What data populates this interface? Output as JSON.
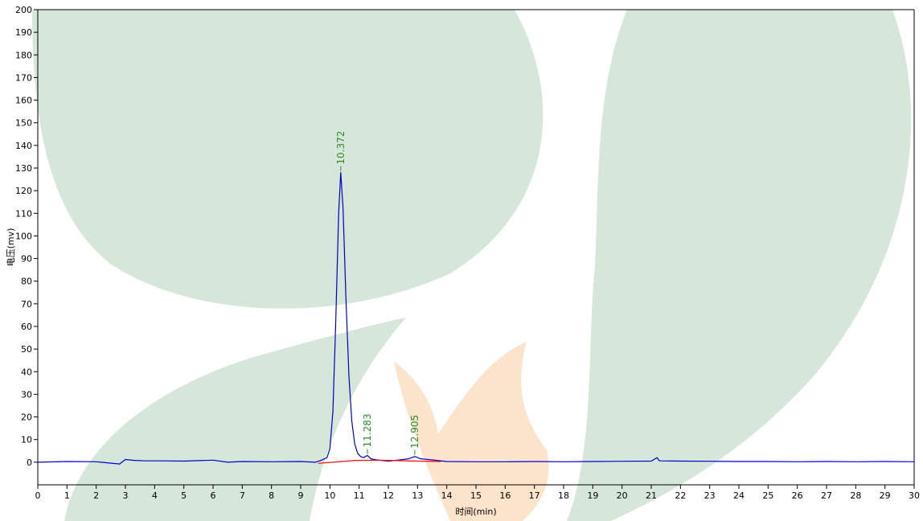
{
  "chart_data": {
    "type": "line",
    "title": "",
    "xlabel": "时间(min)",
    "ylabel": "电压(mv)",
    "xlim": [
      0,
      30
    ],
    "ylim": [
      -10,
      200
    ],
    "x_ticks": [
      0,
      1,
      2,
      3,
      4,
      5,
      6,
      7,
      8,
      9,
      10,
      11,
      12,
      13,
      14,
      15,
      16,
      17,
      18,
      19,
      20,
      21,
      22,
      23,
      24,
      25,
      26,
      27,
      28,
      29,
      30
    ],
    "y_ticks": [
      0,
      10,
      20,
      30,
      40,
      50,
      60,
      70,
      80,
      90,
      100,
      110,
      120,
      130,
      140,
      150,
      160,
      170,
      180,
      190,
      200
    ],
    "grid": false,
    "colors": {
      "signal": "#0000cc",
      "baseline": "#ff0000",
      "peak_marker": "#2e8b2e",
      "watermark_green": "#d6e6d9",
      "watermark_orange": "#fbe3cc"
    },
    "series": [
      {
        "role": "signal",
        "x": [
          0,
          1,
          2,
          2.8,
          3.0,
          3.3,
          3.7,
          4.3,
          5,
          6,
          6.5,
          7,
          8,
          9,
          9.5,
          9.7,
          9.9,
          10.0,
          10.1,
          10.2,
          10.3,
          10.372,
          10.45,
          10.55,
          10.65,
          10.75,
          10.85,
          10.95,
          11.05,
          11.15,
          11.283,
          11.4,
          11.6,
          12.0,
          12.4,
          12.7,
          12.905,
          13.1,
          13.5,
          14,
          15,
          16,
          17,
          18,
          19,
          20,
          21,
          21.2,
          21.25,
          21.3,
          22,
          23,
          24,
          25,
          26,
          27,
          28,
          29,
          30
        ],
        "y": [
          0,
          0.3,
          0.2,
          -0.8,
          1.2,
          0.8,
          0.6,
          0.6,
          0.5,
          0.9,
          0,
          0.3,
          0.2,
          0.3,
          0,
          0.8,
          2,
          6,
          22,
          62,
          110,
          128,
          112,
          72,
          38,
          18,
          8,
          4,
          2.5,
          2,
          3,
          1.5,
          1,
          0.5,
          1,
          1.5,
          2.5,
          1.5,
          1,
          0.3,
          0.2,
          0.2,
          0.3,
          0.2,
          0.3,
          0.4,
          0.5,
          2,
          1,
          0.6,
          0.5,
          0.4,
          0.3,
          0.3,
          0.2,
          0.3,
          0.2,
          0.3,
          0.2
        ]
      },
      {
        "role": "baseline",
        "x": [
          9.6,
          10.9,
          11.7,
          12.3,
          13.0,
          13.8
        ],
        "y": [
          -0.5,
          0.8,
          0.9,
          0.7,
          0.5,
          0.3
        ]
      }
    ],
    "peaks": [
      {
        "rt": 10.372,
        "label": "10.372",
        "height": 128
      },
      {
        "rt": 11.283,
        "label": "11.283",
        "height": 3
      },
      {
        "rt": 12.905,
        "label": "12.905",
        "height": 2.5
      }
    ]
  }
}
